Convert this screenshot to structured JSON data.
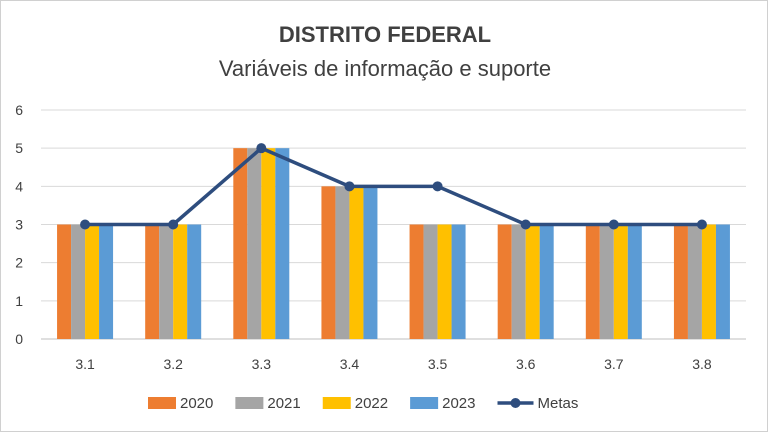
{
  "chart_data": {
    "type": "bar",
    "title": "DISTRITO FEDERAL",
    "subtitle": "Variáveis de informação e suporte",
    "categories": [
      "3.1",
      "3.2",
      "3.3",
      "3.4",
      "3.5",
      "3.6",
      "3.7",
      "3.8"
    ],
    "series": [
      {
        "name": "2020",
        "type": "bar",
        "color": "#ED7D31",
        "values": [
          3,
          3,
          5,
          4,
          3,
          3,
          3,
          3
        ]
      },
      {
        "name": "2021",
        "type": "bar",
        "color": "#A5A5A5",
        "values": [
          3,
          3,
          5,
          4,
          3,
          3,
          3,
          3
        ]
      },
      {
        "name": "2022",
        "type": "bar",
        "color": "#FFC000",
        "values": [
          3,
          3,
          5,
          4,
          3,
          3,
          3,
          3
        ]
      },
      {
        "name": "2023",
        "type": "bar",
        "color": "#5B9BD5",
        "values": [
          3,
          3,
          5,
          4,
          3,
          3,
          3,
          3
        ]
      },
      {
        "name": "Metas",
        "type": "line",
        "color": "#2E4D7E",
        "values": [
          3,
          3,
          5,
          4,
          4,
          3,
          3,
          3
        ]
      }
    ],
    "ylim": [
      0,
      6
    ],
    "yticks": [
      0,
      1,
      2,
      3,
      4,
      5,
      6
    ],
    "xlabel": "",
    "ylabel": "",
    "grid": true,
    "legend_position": "bottom"
  }
}
